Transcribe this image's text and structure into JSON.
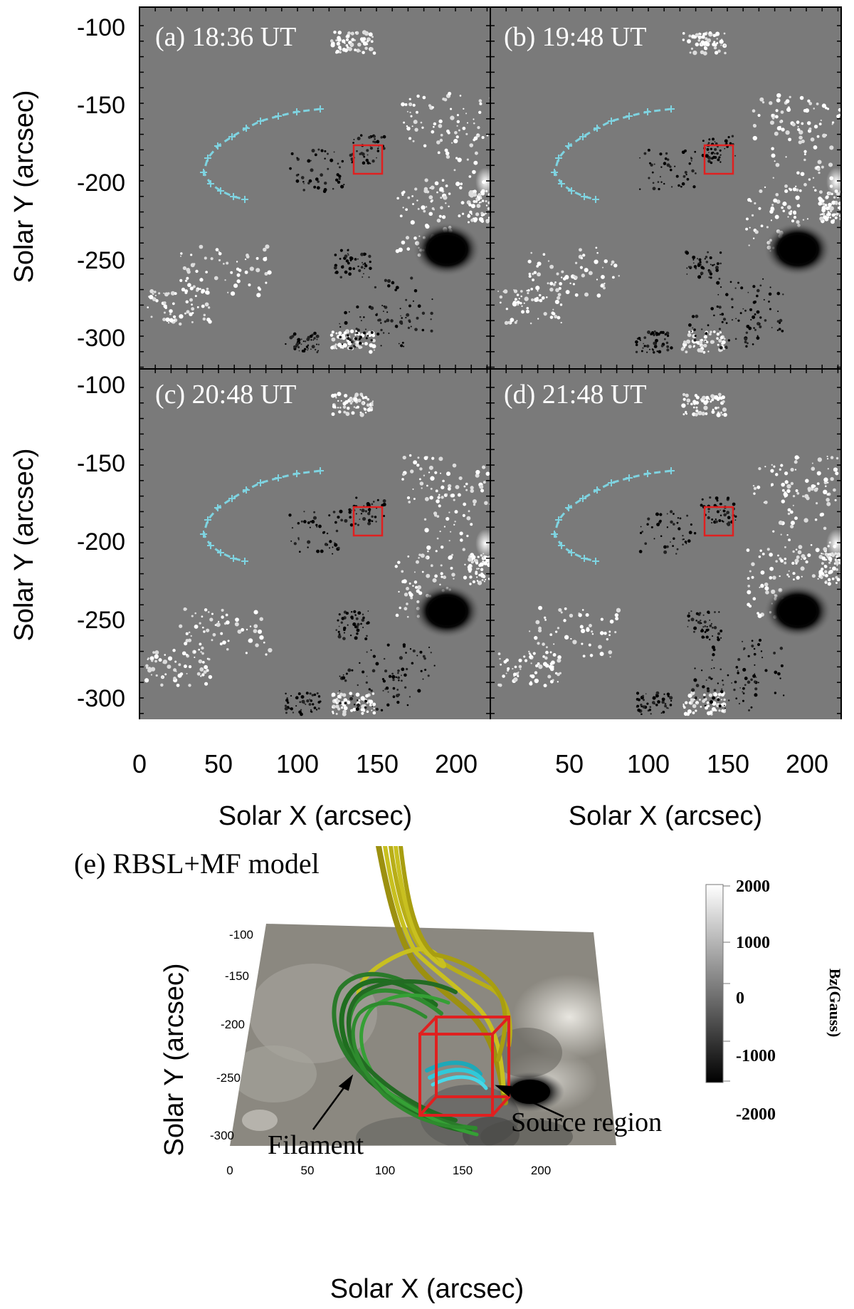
{
  "panels": [
    {
      "label": "(a) 18:36 UT"
    },
    {
      "label": "(b) 19:48 UT"
    },
    {
      "label": "(c) 20:48 UT"
    },
    {
      "label": "(d) 21:48 UT"
    }
  ],
  "axes": {
    "ylabel": "Solar Y (arcsec)",
    "xlabel": "Solar X (arcsec)",
    "yticks": [
      "-100",
      "-150",
      "-200",
      "-250",
      "-300"
    ],
    "xticks_left": [
      "0",
      "50",
      "100",
      "150",
      "200"
    ],
    "xticks_right": [
      "50",
      "100",
      "150",
      "200"
    ]
  },
  "model_panel": {
    "label": "(e) RBSL+MF model",
    "ylabel": "Solar Y (arcsec)",
    "xlabel": "Solar X (arcsec)",
    "yticks": [
      "-100",
      "-150",
      "-200",
      "-250",
      "-300"
    ],
    "xticks": [
      "0",
      "50",
      "100",
      "150",
      "200"
    ],
    "annotation_filament": "Filament",
    "annotation_source": "Source region"
  },
  "colorbar": {
    "label": "Bz(Gauss)",
    "ticks": [
      "2000",
      "1000",
      "0",
      "-1000",
      "-2000"
    ]
  },
  "colors": {
    "filament_trace": "#7fd3e0",
    "source_box": "#e02020",
    "filament_lines": "#2e8b2e",
    "overlying_lines": "#c8c020",
    "source_lines": "#30c8d8"
  }
}
